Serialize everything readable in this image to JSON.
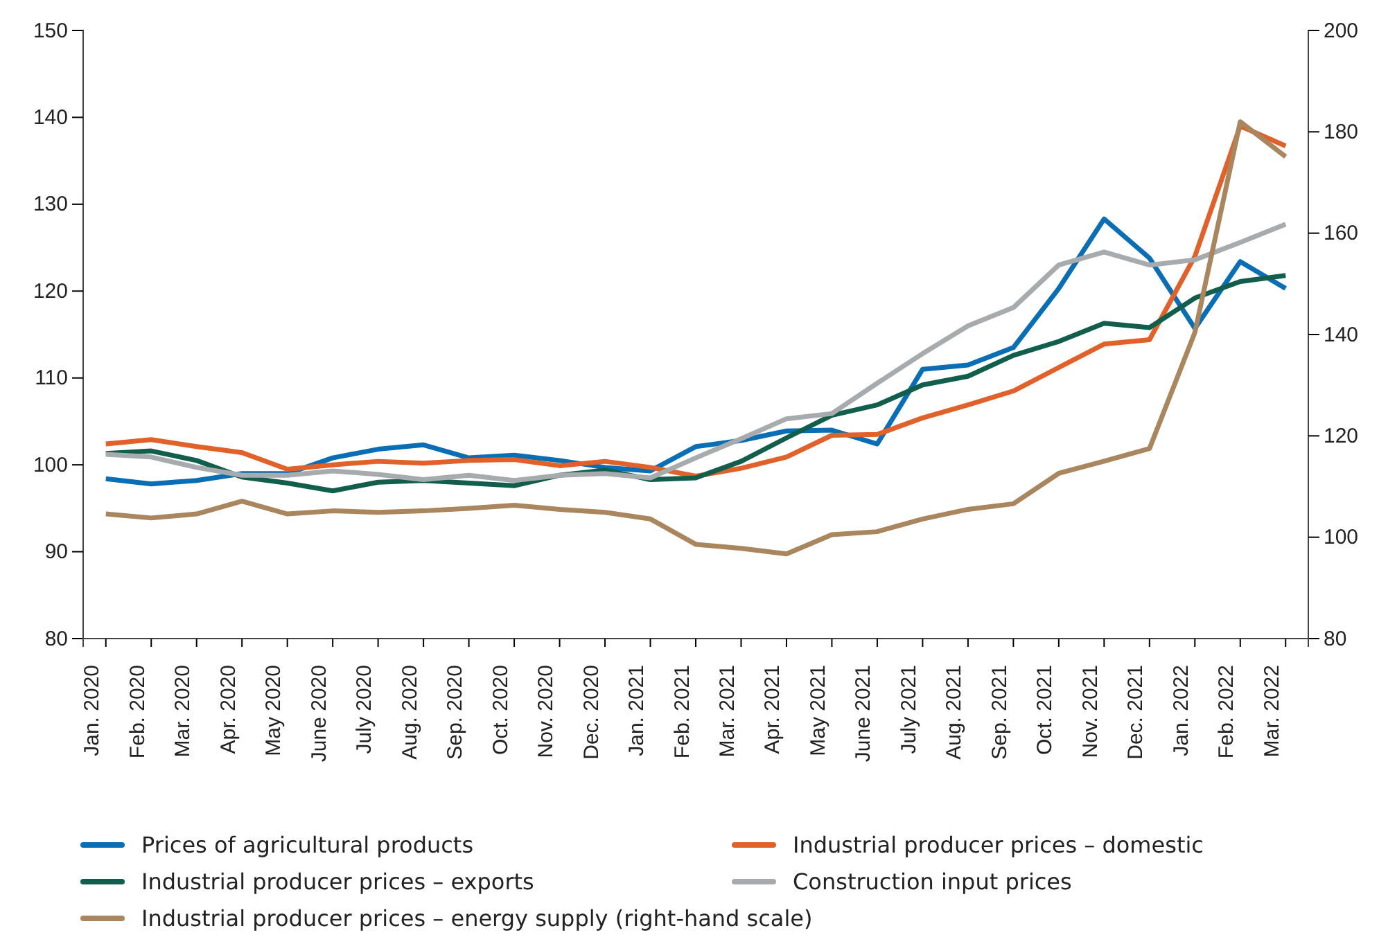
{
  "chart_data": {
    "type": "line",
    "categories": [
      "Jan. 2020",
      "Feb. 2020",
      "Mar. 2020",
      "Apr. 2020",
      "May 2020",
      "June 2020",
      "July 2020",
      "Aug. 2020",
      "Sep. 2020",
      "Oct. 2020",
      "Nov. 2020",
      "Dec. 2020",
      "Jan. 2021",
      "Feb. 2021",
      "Mar. 2021",
      "Apr. 2021",
      "May 2021",
      "June 2021",
      "July 2021",
      "Aug. 2021",
      "Sep. 2021",
      "Oct. 2021",
      "Nov. 2021",
      "Dec. 2021",
      "Jan. 2022",
      "Feb. 2022",
      "Mar. 2022"
    ],
    "series": [
      {
        "name": "Prices of agricultural products",
        "color": "#0a6eb4",
        "values": [
          98.4,
          97.8,
          98.2,
          99.0,
          99.0,
          100.8,
          101.8,
          102.3,
          100.8,
          101.1,
          100.5,
          99.7,
          99.3,
          102.1,
          102.8,
          103.9,
          104.0,
          102.4,
          111.0,
          111.5,
          113.5,
          120.3,
          128.3,
          123.8,
          115.7,
          123.4,
          120.3
        ]
      },
      {
        "name": "Industrial producer prices – domestic",
        "color": "#e0622a",
        "values": [
          102.4,
          102.9,
          102.1,
          101.4,
          99.5,
          100.0,
          100.4,
          100.2,
          100.5,
          100.6,
          99.9,
          100.4,
          99.7,
          98.7,
          99.6,
          100.9,
          103.4,
          103.5,
          105.4,
          106.9,
          108.5,
          111.2,
          113.9,
          114.4,
          124.0,
          139.0,
          136.7
        ]
      },
      {
        "name": "Industrial producer prices – exports",
        "color": "#125e4c",
        "values": [
          101.3,
          101.6,
          100.5,
          98.6,
          97.9,
          97.0,
          98.0,
          98.2,
          97.9,
          97.6,
          98.8,
          99.4,
          98.3,
          98.5,
          100.4,
          103.1,
          105.7,
          106.9,
          109.2,
          110.2,
          112.6,
          114.2,
          116.3,
          115.8,
          119.2,
          121.1,
          121.8
        ]
      },
      {
        "name": "Construction input prices",
        "color": "#a7abad",
        "values": [
          101.2,
          100.9,
          99.7,
          98.8,
          98.8,
          99.3,
          98.9,
          98.3,
          98.8,
          98.2,
          98.8,
          99.0,
          98.5,
          100.8,
          103.0,
          105.3,
          105.9,
          109.4,
          112.8,
          116.0,
          118.1,
          123.0,
          124.5,
          123.0,
          123.6,
          125.6,
          127.7
        ]
      },
      {
        "name": "Industrial producer prices – energy supply (right-hand scale)",
        "color": "#a9865e",
        "axis": "y2",
        "values": [
          104.6,
          103.8,
          104.6,
          107.1,
          104.6,
          105.2,
          104.9,
          105.2,
          105.7,
          106.3,
          105.5,
          104.9,
          103.6,
          98.6,
          97.8,
          96.7,
          100.5,
          101.1,
          103.6,
          105.5,
          106.6,
          112.6,
          115.0,
          117.5,
          140.4,
          182.0,
          175.1
        ]
      }
    ],
    "ylim": [
      80,
      150
    ],
    "yticks": [
      80,
      90,
      100,
      110,
      120,
      130,
      140,
      150
    ],
    "y2lim": [
      80,
      200
    ],
    "y2ticks": [
      80,
      100,
      120,
      140,
      160,
      180,
      200
    ],
    "legend": "bottom",
    "grid": false,
    "marker": "none",
    "line_style": "solid"
  }
}
